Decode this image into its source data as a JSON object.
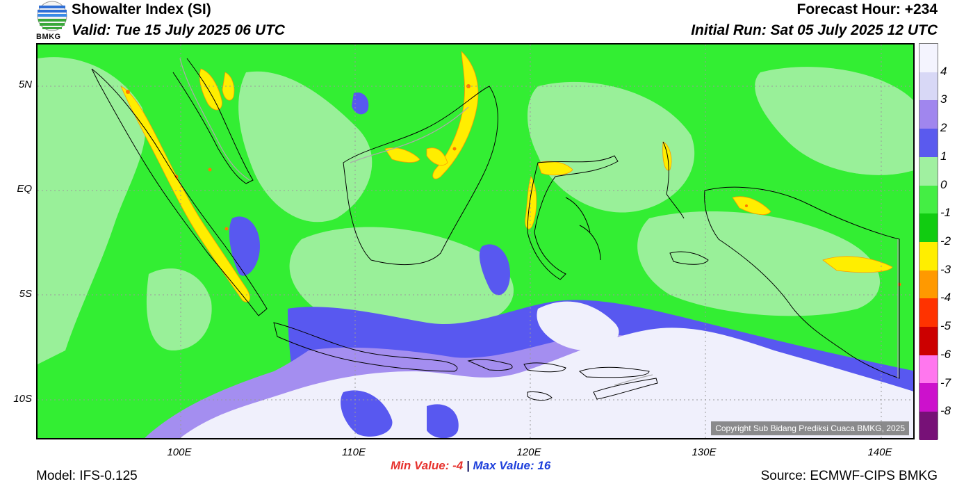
{
  "header": {
    "title": "Showalter Index (SI)",
    "valid": "Valid: Tue 15 July 2025 06 UTC",
    "forecast_hour": "Forecast Hour: +234",
    "initial_run": "Initial Run: Sat 05 July 2025 12 UTC"
  },
  "logo": {
    "text": "BMKG"
  },
  "map": {
    "copyright": "Copyright Sub Bidang Prediksi Cuaca BMKG, 2025",
    "lat_labels": [
      "5N",
      "EQ",
      "5S",
      "10S"
    ],
    "lon_labels": [
      "100E",
      "110E",
      "120E",
      "130E",
      "140E"
    ],
    "colors": {
      "background_green": "#33ee33",
      "light_green": "#99f099",
      "blue": "#5858f0",
      "lavender": "#a48ef0",
      "pale": "#f0f0fc",
      "yellow": "#ffee00"
    }
  },
  "legend": {
    "labels": [
      "4",
      "3",
      "2",
      "1",
      "0",
      "-1",
      "-2",
      "-3",
      "-4",
      "-5",
      "-6",
      "-7",
      "-8"
    ],
    "colors": [
      "#f4f4fe",
      "#d8d8f6",
      "#a086ee",
      "#5a5aee",
      "#a0f0a0",
      "#44ee44",
      "#11cc11",
      "#ffee00",
      "#ff9900",
      "#ff3300",
      "#cc0000",
      "#ff77ee",
      "#cc11cc",
      "#771177"
    ]
  },
  "stats": {
    "min_label": "Min Value:",
    "min_value": "-4",
    "separator": "|",
    "max_label": "Max Value:",
    "max_value": "16"
  },
  "footer": {
    "model": "Model: IFS-0.125",
    "source": "Source: ECMWF-CIPS BMKG"
  }
}
